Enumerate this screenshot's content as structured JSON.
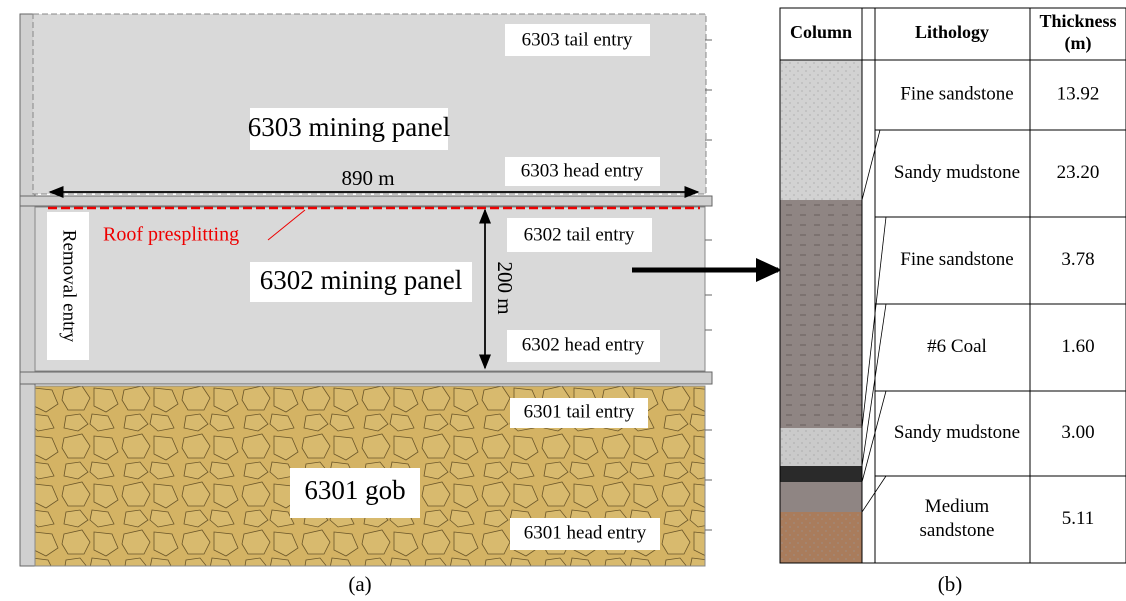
{
  "panel_a": {
    "labels": {
      "tail_6303": "6303 tail entry",
      "panel_6303": "6303 mining panel",
      "head_6303": "6303 head entry",
      "length": "890 m",
      "presplit": "Roof presplitting",
      "removal": "Removal entry",
      "tail_6302": "6302 tail entry",
      "panel_6302": "6302 mining panel",
      "width": "200 m",
      "head_6302": "6302 head entry",
      "tail_6301": "6301 tail entry",
      "gob_6301": "6301 gob",
      "head_6301": "6301 head entry"
    },
    "caption": "(a)"
  },
  "table": {
    "headers": {
      "column": "Column",
      "lithology": "Lithology",
      "thickness": [
        "Thickness",
        "(m)"
      ]
    },
    "rows": [
      {
        "lithology": [
          "Fine sandstone"
        ],
        "thickness": "13.92"
      },
      {
        "lithology": [
          "Sandy mudstone"
        ],
        "thickness": "23.20"
      },
      {
        "lithology": [
          "Fine sandstone"
        ],
        "thickness": "3.78"
      },
      {
        "lithology": [
          "#6 Coal"
        ],
        "thickness": "1.60"
      },
      {
        "lithology": [
          "Sandy mudstone"
        ],
        "thickness": "3.00"
      },
      {
        "lithology": [
          "Medium",
          "sandstone"
        ],
        "thickness": "5.11"
      }
    ],
    "caption": "(b)"
  }
}
